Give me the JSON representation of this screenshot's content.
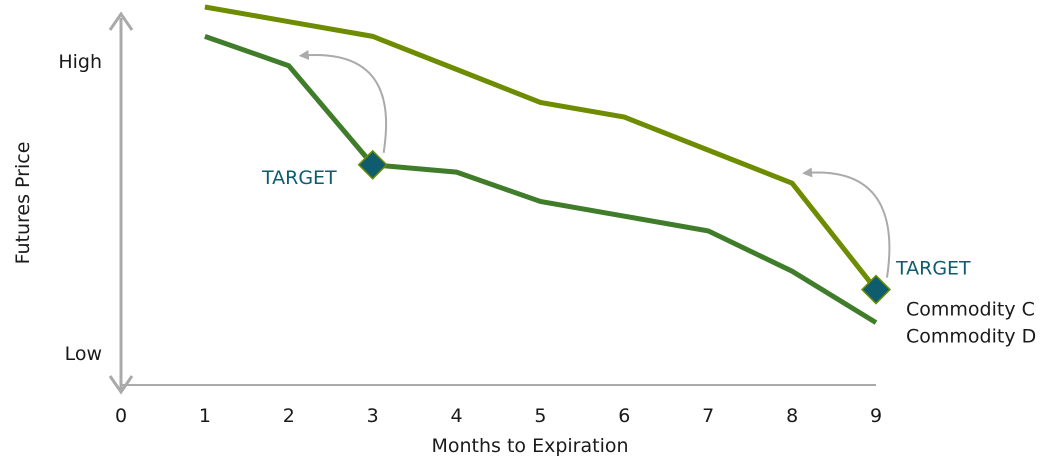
{
  "chart_data": {
    "type": "line",
    "title": "",
    "xlabel": "Months to Expiration",
    "ylabel": "Futures Price",
    "x": [
      1,
      2,
      3,
      4,
      5,
      6,
      7,
      8,
      9
    ],
    "xticks": [
      "0",
      "1",
      "2",
      "3",
      "4",
      "5",
      "6",
      "7",
      "8",
      "9"
    ],
    "xlim": [
      0,
      9
    ],
    "ylim": [
      0,
      10
    ],
    "ytick_labels": {
      "high": "High",
      "low": "Low"
    },
    "grid": false,
    "legend": "right, at line ends",
    "series": [
      {
        "name": "Commodity C",
        "values": [
          10.3,
          9.9,
          9.5,
          8.6,
          7.7,
          7.3,
          6.4,
          5.5,
          2.6
        ],
        "color": "#6e8c00"
      },
      {
        "name": "Commodity D",
        "values": [
          9.5,
          8.7,
          6.0,
          5.8,
          5.0,
          4.6,
          4.2,
          3.1,
          1.7
        ],
        "color": "#3f7d2a"
      }
    ],
    "annotations": [
      {
        "text": "TARGET",
        "series": "Commodity D",
        "x": 3,
        "arrow_to_x": 2
      },
      {
        "text": "TARGET",
        "series": "Commodity C",
        "x": 9,
        "arrow_to_x": 8
      }
    ],
    "colors": {
      "target": "#0e5c6e",
      "axis": "#aaaaaa",
      "arrow": "#aaaaaa"
    }
  }
}
